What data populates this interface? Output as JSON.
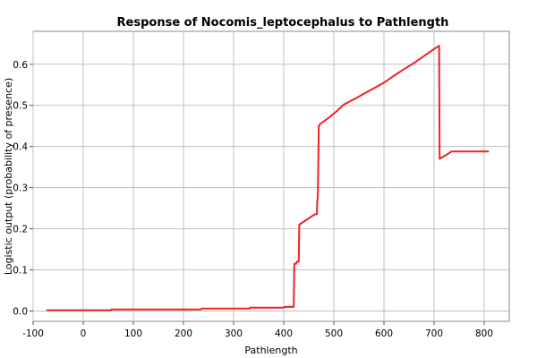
{
  "chart_data": {
    "type": "line",
    "title": "Response of Nocomis_leptocephalus to Pathlength",
    "xlabel": "Pathlength",
    "ylabel": "Logistic output (probability of presence)",
    "xlim": [
      -100,
      850
    ],
    "ylim": [
      -0.025,
      0.68
    ],
    "x_ticks": [
      -100,
      0,
      100,
      200,
      300,
      400,
      500,
      600,
      700,
      800
    ],
    "x_tick_labels": [
      "-100",
      "0",
      "100",
      "200",
      "300",
      "400",
      "500",
      "600",
      "700",
      "800"
    ],
    "y_ticks": [
      0.0,
      0.1,
      0.2,
      0.3,
      0.4,
      0.5,
      0.6
    ],
    "y_tick_labels": [
      "0.0",
      "0.1",
      "0.2",
      "0.3",
      "0.4",
      "0.5",
      "0.6"
    ],
    "grid": true,
    "legend": "none",
    "series": [
      {
        "color": "#ee2222",
        "x": [
          -72,
          55,
          56,
          235,
          236,
          332,
          333,
          400,
          401,
          420,
          421,
          425,
          426,
          430,
          431,
          462,
          466,
          467,
          468,
          470,
          473,
          490,
          505,
          520,
          545,
          570,
          600,
          620,
          640,
          660,
          680,
          700,
          710,
          711,
          715,
          725,
          735,
          760,
          790,
          808
        ],
        "y": [
          0.002,
          0.002,
          0.004,
          0.004,
          0.006,
          0.006,
          0.008,
          0.008,
          0.01,
          0.01,
          0.115,
          0.115,
          0.12,
          0.12,
          0.21,
          0.235,
          0.235,
          0.27,
          0.275,
          0.45,
          0.455,
          0.47,
          0.485,
          0.502,
          0.518,
          0.535,
          0.555,
          0.572,
          0.588,
          0.603,
          0.62,
          0.637,
          0.645,
          0.37,
          0.373,
          0.38,
          0.388,
          0.388,
          0.388,
          0.388
        ]
      }
    ]
  }
}
